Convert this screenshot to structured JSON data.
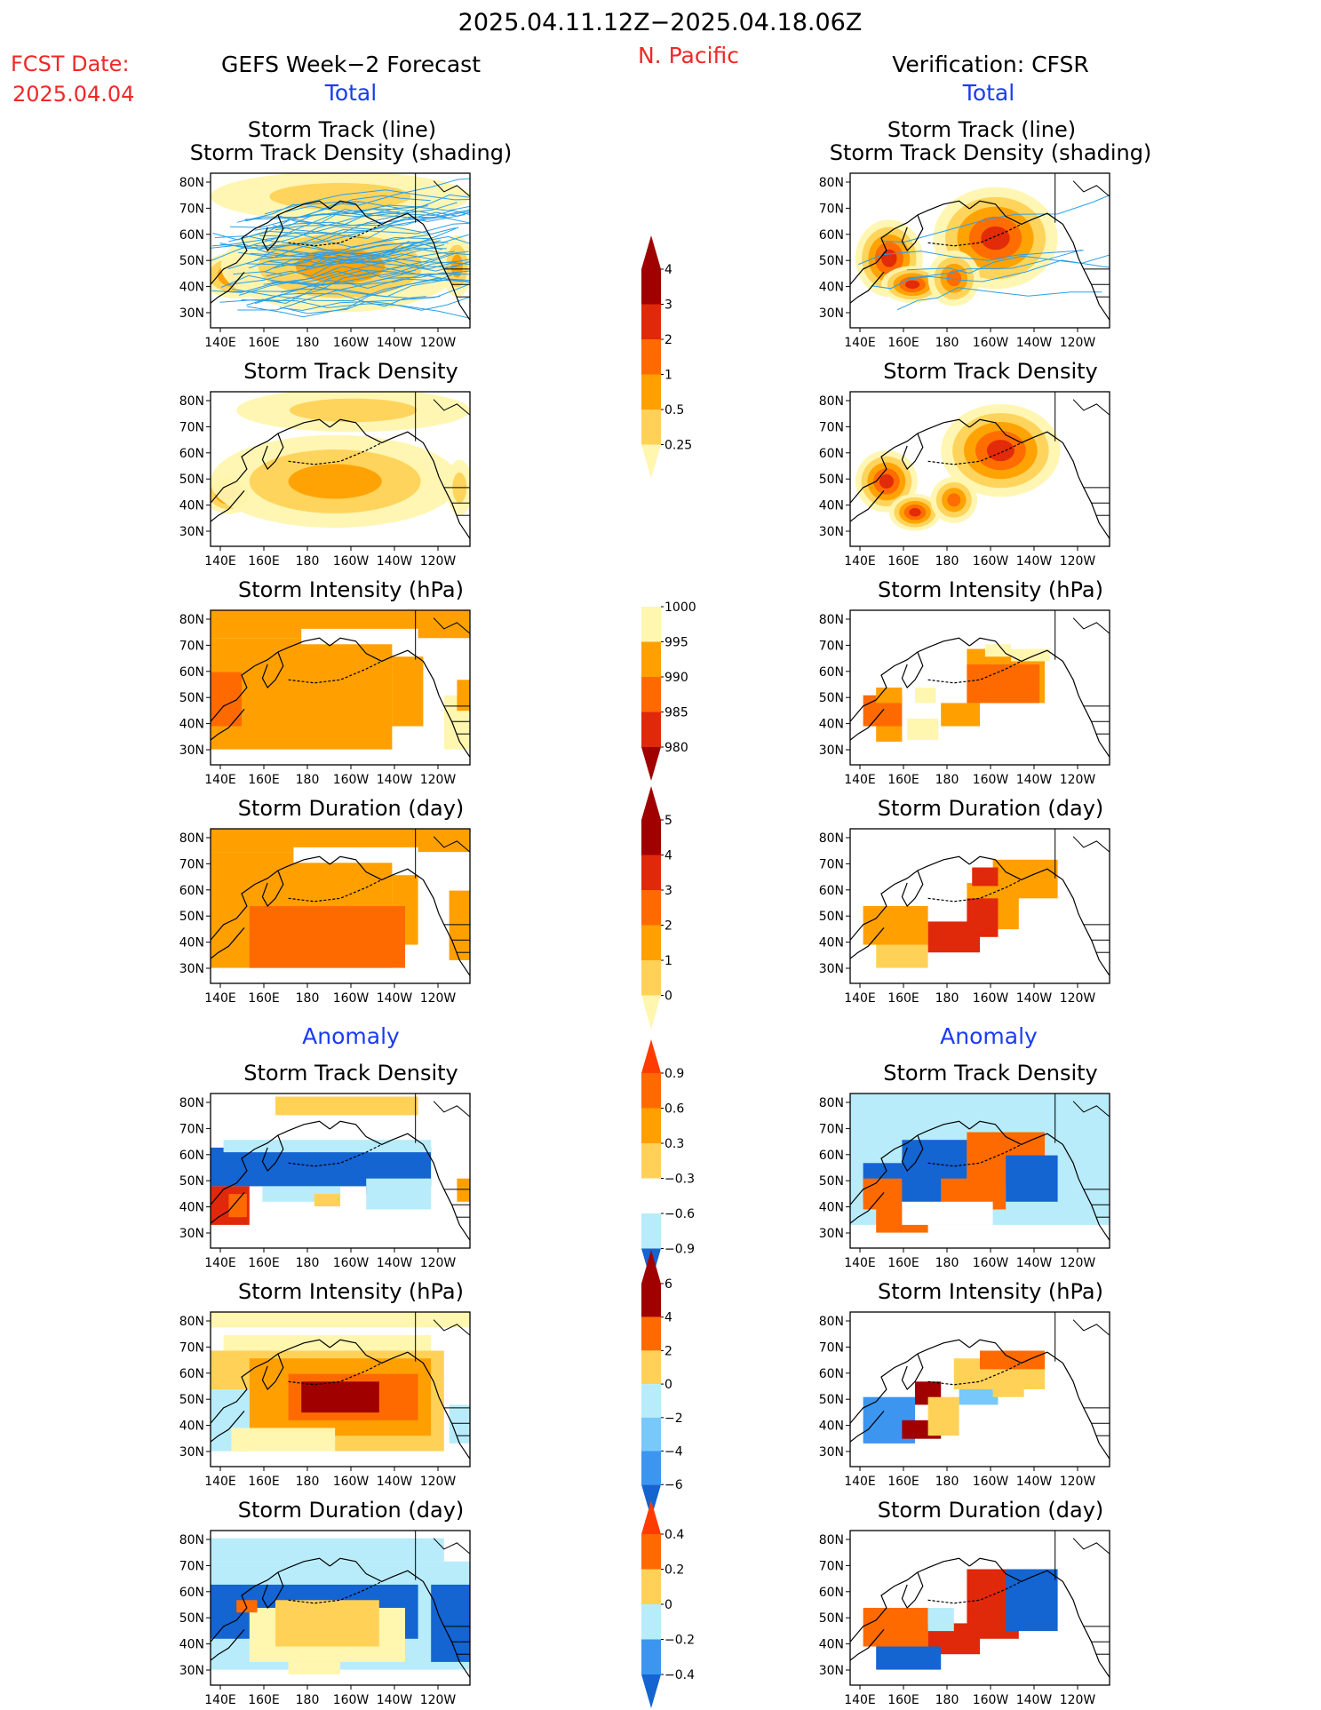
{
  "header": {
    "period": "2025.04.11.12Z−2025.04.18.06Z",
    "region": "N. Pacific",
    "fcst_label": "FCST Date:",
    "fcst_date": "2025.04.04",
    "left_title": "GEFS Week−2 Forecast",
    "right_title": "Verification: CFSR",
    "total_label": "Total",
    "anomaly_label": "Anomaly"
  },
  "panel_titles": {
    "track_line": "Storm Track (line)",
    "track_shading": "Storm Track Density (shading)",
    "density": "Storm Track Density",
    "intensity": "Storm Intensity (hPa)",
    "duration": "Storm Duration (day)"
  },
  "axes": {
    "lat_labels": [
      "80N",
      "70N",
      "60N",
      "50N",
      "40N",
      "30N"
    ],
    "lon_labels": [
      "140E",
      "160E",
      "180",
      "160W",
      "140W",
      "120W"
    ]
  },
  "colorbars": {
    "density_total": [
      "4",
      "3",
      "2",
      "1",
      "0.5",
      "0.25"
    ],
    "intensity_total": [
      "1000",
      "995",
      "990",
      "985",
      "980"
    ],
    "duration_total": [
      "5",
      "4",
      "3",
      "2",
      "1",
      "0"
    ],
    "density_anom": [
      "0.9",
      "0.6",
      "0.3",
      "−0.3",
      "−0.6",
      "−0.9"
    ],
    "intensity_anom": [
      "6",
      "4",
      "2",
      "0",
      "−2",
      "−4",
      "−6"
    ],
    "duration_anom": [
      "0.4",
      "0.2",
      "0",
      "−0.2",
      "−0.4"
    ]
  },
  "colors": {
    "warm": [
      "#fff6b0",
      "#ffd257",
      "#ffa000",
      "#ff6a00",
      "#e0280a",
      "#a00000"
    ],
    "cool": [
      "#b8ecfa",
      "#78c8fa",
      "#3c96f0",
      "#1464d2"
    ],
    "track_line": "#2aa0e8"
  }
}
